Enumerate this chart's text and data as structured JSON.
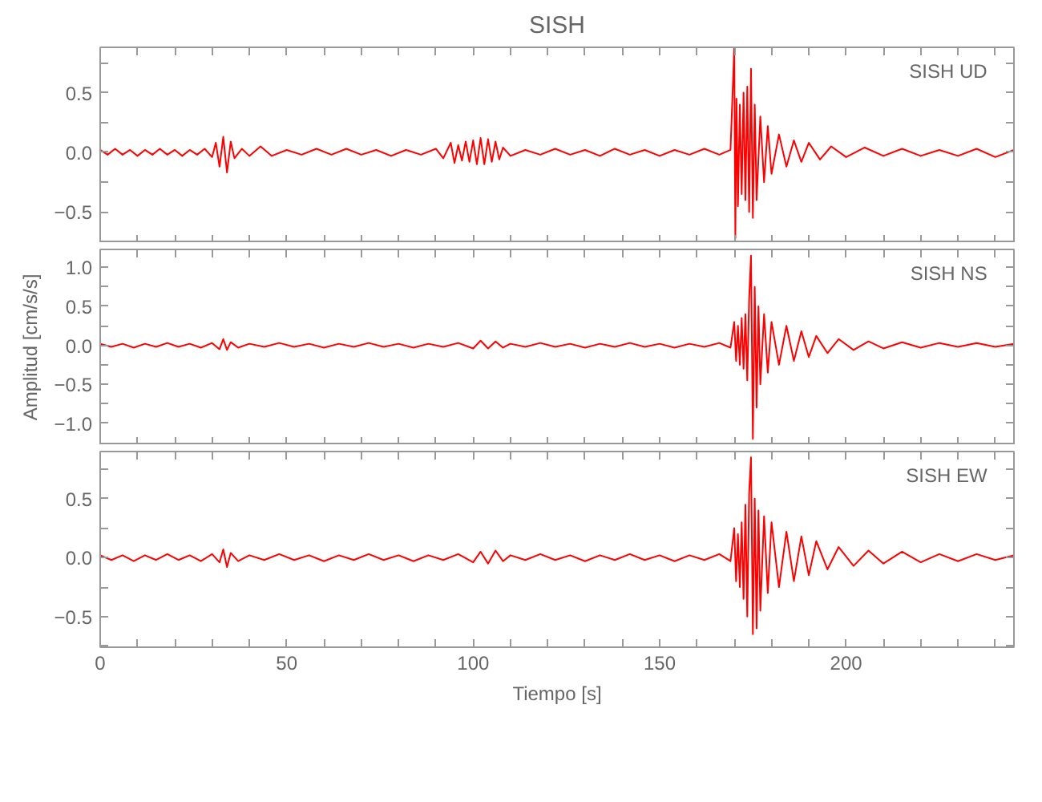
{
  "chart_data": [
    {
      "type": "line",
      "title": "SISH",
      "annotations": [
        "SISH   UD"
      ],
      "tick_labels": "y",
      "xlim": [
        0,
        245
      ],
      "ylim": [
        -0.76,
        0.88
      ],
      "xticks": [
        0,
        {
          "value": 10,
          "label": null
        },
        {
          "value": 20,
          "label": null
        },
        {
          "value": 30,
          "label": null
        },
        {
          "value": 40,
          "label": null
        },
        50,
        {
          "value": 60,
          "label": null
        },
        {
          "value": 70,
          "label": null
        },
        {
          "value": 80,
          "label": null
        },
        {
          "value": 90,
          "label": null
        },
        100,
        {
          "value": 110,
          "label": null
        },
        {
          "value": 120,
          "label": null
        },
        {
          "value": 130,
          "label": null
        },
        {
          "value": 140,
          "label": null
        },
        150,
        {
          "value": 160,
          "label": null
        },
        {
          "value": 170,
          "label": null
        },
        {
          "value": 180,
          "label": null
        },
        {
          "value": 190,
          "label": null
        },
        200,
        {
          "value": 210,
          "label": null
        },
        {
          "value": 220,
          "label": null
        },
        {
          "value": 230,
          "label": null
        },
        {
          "value": 240,
          "label": null
        }
      ],
      "yticks": [
        {
          "value": -0.75,
          "label": null
        },
        {
          "value": -0.5,
          "label": "−0.5"
        },
        {
          "value": -0.25,
          "label": null
        },
        {
          "value": 0,
          "label": "0.0"
        },
        {
          "value": 0.25,
          "label": null
        },
        {
          "value": 0.5,
          "label": "0.5"
        },
        {
          "value": 0.75,
          "label": null
        }
      ],
      "series": [
        {
          "color": "#ff0000",
          "x": [
            0,
            2,
            4,
            6,
            8,
            10,
            12,
            14,
            16,
            18,
            20,
            22,
            24,
            26,
            28,
            30,
            31,
            32,
            33,
            34,
            35,
            36,
            38,
            40,
            43,
            46,
            50,
            54,
            58,
            62,
            66,
            70,
            74,
            78,
            82,
            86,
            90,
            92,
            94,
            95,
            96,
            97,
            98,
            99,
            100,
            101,
            102,
            103,
            104,
            105,
            106,
            107,
            108,
            110,
            114,
            118,
            122,
            126,
            130,
            134,
            138,
            142,
            146,
            150,
            154,
            158,
            162,
            166,
            169,
            170,
            170.3,
            170.6,
            171,
            171.5,
            172,
            172.5,
            173,
            173.5,
            174,
            174.5,
            175,
            175.5,
            176,
            177,
            178,
            179,
            180,
            182,
            184,
            186,
            188,
            190,
            193,
            196,
            200,
            205,
            210,
            215,
            220,
            225,
            230,
            235,
            240,
            245
          ],
          "values": [
            0.02,
            -0.02,
            0.03,
            -0.02,
            0.02,
            -0.03,
            0.02,
            -0.02,
            0.03,
            -0.02,
            0.02,
            -0.03,
            0.02,
            -0.02,
            0.03,
            -0.04,
            0.08,
            -0.12,
            0.13,
            -0.17,
            0.09,
            -0.05,
            0.03,
            -0.03,
            0.05,
            -0.03,
            0.02,
            -0.02,
            0.03,
            -0.02,
            0.03,
            -0.02,
            0.02,
            -0.03,
            0.02,
            -0.02,
            0.03,
            -0.05,
            0.08,
            -0.09,
            0.06,
            -0.07,
            0.09,
            -0.08,
            0.1,
            -0.1,
            0.12,
            -0.1,
            0.11,
            -0.08,
            0.09,
            -0.06,
            0.04,
            -0.03,
            0.02,
            -0.02,
            0.03,
            -0.02,
            0.02,
            -0.03,
            0.03,
            -0.02,
            0.02,
            -0.03,
            0.02,
            -0.02,
            0.03,
            -0.02,
            0.02,
            0.87,
            -0.72,
            0.45,
            -0.45,
            0.4,
            -0.35,
            0.5,
            -0.4,
            0.55,
            -0.5,
            0.7,
            -0.55,
            0.4,
            -0.4,
            0.3,
            -0.25,
            0.22,
            -0.18,
            0.15,
            -0.12,
            0.1,
            -0.08,
            0.08,
            -0.06,
            0.05,
            -0.04,
            0.04,
            -0.03,
            0.03,
            -0.03,
            0.02,
            -0.03,
            0.03,
            -0.04,
            0.02
          ]
        }
      ]
    },
    {
      "type": "line",
      "ylabel": "Amplitud [cm/s/s]",
      "annotations": [
        "SISH   NS"
      ],
      "tick_labels": "y",
      "xlim": [
        0,
        245
      ],
      "ylim": [
        -1.28,
        1.23
      ],
      "xticks": [
        0,
        {
          "value": 10,
          "label": null
        },
        {
          "value": 20,
          "label": null
        },
        {
          "value": 30,
          "label": null
        },
        {
          "value": 40,
          "label": null
        },
        50,
        {
          "value": 60,
          "label": null
        },
        {
          "value": 70,
          "label": null
        },
        {
          "value": 80,
          "label": null
        },
        {
          "value": 90,
          "label": null
        },
        100,
        {
          "value": 110,
          "label": null
        },
        {
          "value": 120,
          "label": null
        },
        {
          "value": 130,
          "label": null
        },
        {
          "value": 140,
          "label": null
        },
        150,
        {
          "value": 160,
          "label": null
        },
        {
          "value": 170,
          "label": null
        },
        {
          "value": 180,
          "label": null
        },
        {
          "value": 190,
          "label": null
        },
        200,
        {
          "value": 210,
          "label": null
        },
        {
          "value": 220,
          "label": null
        },
        {
          "value": 230,
          "label": null
        },
        {
          "value": 240,
          "label": null
        }
      ],
      "yticks": [
        {
          "value": -1.25,
          "label": null
        },
        {
          "value": -1,
          "label": "−1.0"
        },
        {
          "value": -0.75,
          "label": null
        },
        {
          "value": -0.5,
          "label": "−0.5"
        },
        {
          "value": -0.25,
          "label": null
        },
        {
          "value": 0,
          "label": "0.0"
        },
        {
          "value": 0.25,
          "label": null
        },
        {
          "value": 0.5,
          "label": "0.5"
        },
        {
          "value": 0.75,
          "label": null
        },
        {
          "value": 1,
          "label": "1.0"
        }
      ],
      "series": [
        {
          "color": "#ff0000",
          "x": [
            0,
            3,
            6,
            9,
            12,
            15,
            18,
            21,
            24,
            27,
            30,
            32,
            33,
            34,
            35,
            37,
            40,
            44,
            48,
            52,
            56,
            60,
            64,
            68,
            72,
            76,
            80,
            84,
            88,
            92,
            96,
            100,
            102,
            104,
            106,
            108,
            110,
            114,
            118,
            122,
            126,
            130,
            134,
            138,
            142,
            146,
            150,
            154,
            158,
            162,
            166,
            169,
            170,
            170.5,
            171,
            171.5,
            172,
            172.5,
            173,
            173.5,
            174,
            174.5,
            175,
            175.5,
            176,
            176.5,
            177,
            178,
            179,
            180,
            182,
            184,
            186,
            188,
            190,
            192,
            195,
            198,
            202,
            206,
            210,
            215,
            220,
            225,
            230,
            235,
            240,
            245
          ],
          "values": [
            0.02,
            -0.02,
            0.02,
            -0.03,
            0.02,
            -0.02,
            0.03,
            -0.02,
            0.02,
            -0.03,
            0.03,
            -0.05,
            0.08,
            -0.06,
            0.04,
            -0.03,
            0.02,
            -0.02,
            0.03,
            -0.02,
            0.02,
            -0.03,
            0.02,
            -0.02,
            0.03,
            -0.02,
            0.02,
            -0.03,
            0.02,
            -0.02,
            0.03,
            -0.04,
            0.06,
            -0.04,
            0.05,
            -0.03,
            0.02,
            -0.02,
            0.03,
            -0.02,
            0.02,
            -0.03,
            0.02,
            -0.02,
            0.03,
            -0.02,
            0.02,
            -0.03,
            0.02,
            -0.02,
            0.03,
            -0.03,
            0.3,
            -0.2,
            0.25,
            -0.25,
            0.35,
            -0.3,
            0.4,
            -0.45,
            0.6,
            1.15,
            -1.2,
            0.75,
            -0.8,
            0.5,
            -0.5,
            0.4,
            -0.35,
            0.3,
            -0.25,
            0.25,
            -0.2,
            0.18,
            -0.15,
            0.12,
            -0.1,
            0.08,
            -0.06,
            0.05,
            -0.04,
            0.04,
            -0.03,
            0.03,
            -0.02,
            0.03,
            -0.02,
            0.02
          ]
        }
      ]
    },
    {
      "type": "line",
      "xlabel": "Tiempo [s]",
      "annotations": [
        "SISH   EW"
      ],
      "xlim": [
        0,
        245
      ],
      "ylim": [
        -0.76,
        0.9
      ],
      "xticks": [
        0,
        {
          "value": 10,
          "label": null
        },
        {
          "value": 20,
          "label": null
        },
        {
          "value": 30,
          "label": null
        },
        {
          "value": 40,
          "label": null
        },
        50,
        {
          "value": 60,
          "label": null
        },
        {
          "value": 70,
          "label": null
        },
        {
          "value": 80,
          "label": null
        },
        {
          "value": 90,
          "label": null
        },
        100,
        {
          "value": 110,
          "label": null
        },
        {
          "value": 120,
          "label": null
        },
        {
          "value": 130,
          "label": null
        },
        {
          "value": 140,
          "label": null
        },
        150,
        {
          "value": 160,
          "label": null
        },
        {
          "value": 170,
          "label": null
        },
        {
          "value": 180,
          "label": null
        },
        {
          "value": 190,
          "label": null
        },
        200,
        {
          "value": 210,
          "label": null
        },
        {
          "value": 220,
          "label": null
        },
        {
          "value": 230,
          "label": null
        },
        {
          "value": 240,
          "label": null
        }
      ],
      "yticks": [
        {
          "value": -0.75,
          "label": null
        },
        {
          "value": -0.5,
          "label": "−0.5"
        },
        {
          "value": -0.25,
          "label": null
        },
        {
          "value": 0,
          "label": "0.0"
        },
        {
          "value": 0.25,
          "label": null
        },
        {
          "value": 0.5,
          "label": "0.5"
        },
        {
          "value": 0.75,
          "label": null
        }
      ],
      "series": [
        {
          "color": "#ff0000",
          "x": [
            0,
            3,
            6,
            9,
            12,
            15,
            18,
            21,
            24,
            27,
            30,
            32,
            33,
            34,
            35,
            37,
            40,
            44,
            48,
            52,
            56,
            60,
            64,
            68,
            72,
            76,
            80,
            84,
            88,
            92,
            96,
            100,
            102,
            104,
            106,
            108,
            110,
            114,
            118,
            122,
            126,
            130,
            134,
            138,
            142,
            146,
            150,
            154,
            158,
            162,
            166,
            169,
            170,
            170.5,
            171,
            171.5,
            172,
            172.5,
            173,
            173.5,
            174,
            174.5,
            175,
            175.5,
            176,
            176.5,
            177,
            178,
            179,
            180,
            182,
            184,
            186,
            188,
            190,
            192,
            195,
            198,
            202,
            206,
            210,
            215,
            220,
            225,
            230,
            235,
            240,
            245
          ],
          "values": [
            0.02,
            -0.02,
            0.02,
            -0.03,
            0.02,
            -0.02,
            0.03,
            -0.02,
            0.02,
            -0.03,
            0.03,
            -0.04,
            0.07,
            -0.08,
            0.04,
            -0.03,
            0.02,
            -0.02,
            0.03,
            -0.02,
            0.02,
            -0.03,
            0.02,
            -0.02,
            0.03,
            -0.02,
            0.02,
            -0.03,
            0.02,
            -0.02,
            0.03,
            -0.04,
            0.05,
            -0.05,
            0.06,
            -0.03,
            0.02,
            -0.02,
            0.03,
            -0.02,
            0.02,
            -0.03,
            0.02,
            -0.02,
            0.03,
            -0.02,
            0.02,
            -0.03,
            0.02,
            -0.02,
            0.03,
            -0.03,
            0.25,
            -0.2,
            0.2,
            -0.25,
            0.3,
            -0.35,
            0.45,
            -0.5,
            0.55,
            0.85,
            -0.65,
            0.5,
            -0.6,
            0.4,
            -0.45,
            0.35,
            -0.3,
            0.3,
            -0.25,
            0.22,
            -0.2,
            0.18,
            -0.15,
            0.14,
            -0.1,
            0.09,
            -0.07,
            0.06,
            -0.05,
            0.05,
            -0.04,
            0.03,
            -0.03,
            0.03,
            -0.02,
            0.02
          ]
        }
      ]
    }
  ]
}
